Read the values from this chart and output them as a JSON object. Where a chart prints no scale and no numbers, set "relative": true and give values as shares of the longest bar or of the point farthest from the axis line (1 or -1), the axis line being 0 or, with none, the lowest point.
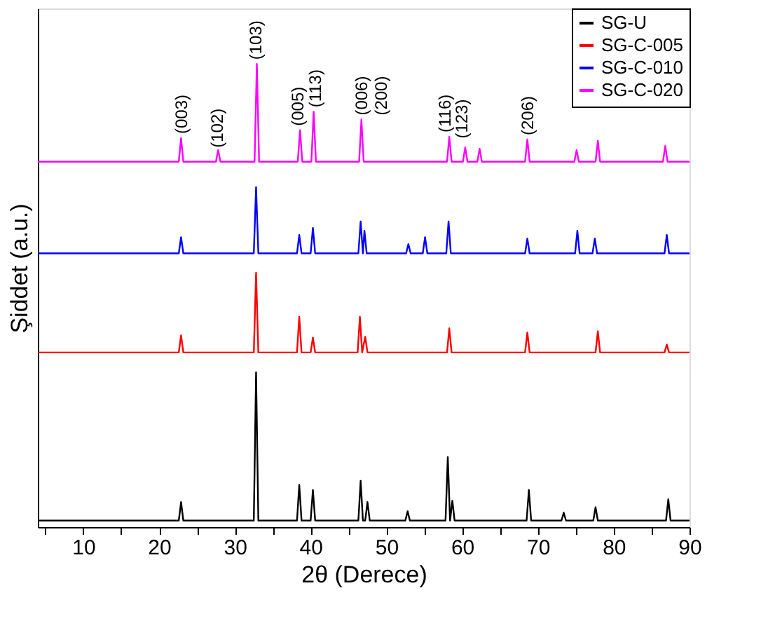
{
  "chart_data": {
    "type": "line",
    "relative": true,
    "xlabel": "2θ (Derece)",
    "ylabel": "Şiddet (a.u.)",
    "xlim": [
      4,
      90
    ],
    "xticks": [
      {
        "value": 5,
        "label": null
      },
      10,
      {
        "value": 15,
        "label": null
      },
      20,
      {
        "value": 25,
        "label": null
      },
      30,
      {
        "value": 35,
        "label": null
      },
      40,
      {
        "value": 45,
        "label": null
      },
      50,
      {
        "value": 55,
        "label": null
      },
      60,
      {
        "value": 65,
        "label": null
      },
      70,
      {
        "value": 75,
        "label": null
      },
      80,
      {
        "value": 85,
        "label": null
      },
      90
    ],
    "legend": "top right",
    "grid": false,
    "marker": "none",
    "line_style": "solid",
    "series": [
      {
        "name": "SG-U",
        "color": "#000000",
        "x": [
          4,
          22.6,
          22.9,
          23.2,
          32.5,
          32.8,
          33.1,
          38.2,
          38.5,
          38.8,
          40.0,
          40.3,
          40.6,
          46.3,
          46.6,
          46.9,
          47.2,
          47.5,
          47.8,
          52.5,
          52.8,
          53.1,
          57.8,
          58.1,
          58.4,
          58.7,
          59.0,
          68.5,
          68.8,
          69.1,
          73.1,
          73.4,
          73.7,
          77.3,
          77.6,
          77.9,
          86.9,
          87.2,
          87.5,
          90
        ],
        "values": [
          0.014,
          0.014,
          0.054,
          0.014,
          0.014,
          0.334,
          0.014,
          0.014,
          0.091,
          0.014,
          0.014,
          0.08,
          0.014,
          0.014,
          0.1,
          0.014,
          0.014,
          0.054,
          0.014,
          0.014,
          0.034,
          0.014,
          0.014,
          0.151,
          0.014,
          0.057,
          0.014,
          0.014,
          0.08,
          0.014,
          0.014,
          0.031,
          0.014,
          0.014,
          0.043,
          0.014,
          0.014,
          0.06,
          0.014,
          0.014
        ]
      },
      {
        "name": "SG-C-005",
        "color": "#ff0000",
        "x": [
          4,
          22.6,
          22.9,
          23.2,
          32.5,
          32.8,
          33.1,
          38.2,
          38.5,
          38.8,
          40.0,
          40.3,
          40.6,
          46.2,
          46.5,
          46.8,
          47.2,
          47.5,
          58.0,
          58.3,
          58.6,
          68.3,
          68.6,
          68.9,
          77.6,
          77.9,
          78.2,
          86.7,
          87.0,
          87.3,
          90
        ],
        "values": [
          0.377,
          0.377,
          0.414,
          0.377,
          0.377,
          0.549,
          0.377,
          0.377,
          0.454,
          0.377,
          0.377,
          0.409,
          0.377,
          0.377,
          0.454,
          0.377,
          0.411,
          0.377,
          0.377,
          0.429,
          0.377,
          0.377,
          0.42,
          0.377,
          0.377,
          0.423,
          0.377,
          0.377,
          0.394,
          0.377,
          0.377
        ]
      },
      {
        "name": "SG-C-010",
        "color": "#0000ff",
        "x": [
          4,
          22.6,
          22.9,
          23.2,
          32.5,
          32.8,
          33.1,
          38.2,
          38.5,
          38.8,
          40.0,
          40.3,
          40.6,
          46.3,
          46.6,
          46.9,
          47.1,
          47.4,
          52.6,
          52.9,
          53.2,
          54.8,
          55.1,
          55.4,
          57.9,
          58.2,
          58.5,
          68.3,
          68.6,
          68.9,
          74.9,
          75.2,
          75.5,
          77.2,
          77.5,
          77.8,
          86.7,
          87.0,
          87.3,
          90
        ],
        "values": [
          0.591,
          0.591,
          0.626,
          0.591,
          0.591,
          0.734,
          0.591,
          0.591,
          0.631,
          0.591,
          0.591,
          0.646,
          0.591,
          0.591,
          0.66,
          0.591,
          0.64,
          0.591,
          0.591,
          0.611,
          0.591,
          0.591,
          0.626,
          0.591,
          0.591,
          0.66,
          0.591,
          0.591,
          0.623,
          0.591,
          0.591,
          0.64,
          0.591,
          0.591,
          0.623,
          0.591,
          0.591,
          0.631,
          0.591,
          0.591
        ]
      },
      {
        "name": "SG-C-020",
        "color": "#ff00ff",
        "x": [
          4,
          22.6,
          22.9,
          23.2,
          27.5,
          27.8,
          28.1,
          32.6,
          32.9,
          33.2,
          38.3,
          38.6,
          38.9,
          40.1,
          40.4,
          40.7,
          46.4,
          46.7,
          47.0,
          58.0,
          58.3,
          58.6,
          60.1,
          60.4,
          60.7,
          62.0,
          62.3,
          62.6,
          68.3,
          68.6,
          68.9,
          74.8,
          75.1,
          75.4,
          77.6,
          77.9,
          78.2,
          86.5,
          86.8,
          87.1,
          90
        ],
        "values": [
          0.789,
          0.789,
          0.84,
          0.789,
          0.789,
          0.814,
          0.789,
          0.789,
          1.0,
          0.789,
          0.789,
          0.857,
          0.789,
          0.789,
          0.897,
          0.789,
          0.789,
          0.88,
          0.789,
          0.789,
          0.843,
          0.789,
          0.789,
          0.82,
          0.789,
          0.789,
          0.817,
          0.789,
          0.789,
          0.837,
          0.789,
          0.789,
          0.814,
          0.789,
          0.789,
          0.834,
          0.789,
          0.789,
          0.823,
          0.789,
          0.789
        ]
      }
    ],
    "annotations": [
      {
        "text": "(003)",
        "x": 23.0,
        "y": 0.84
      },
      {
        "text": "(102)",
        "x": 27.7,
        "y": 0.81
      },
      {
        "text": "(103)",
        "x": 32.8,
        "y": 1.0
      },
      {
        "text": "(005)",
        "x": 38.3,
        "y": 0.857
      },
      {
        "text": "(113)",
        "x": 40.6,
        "y": 0.897
      },
      {
        "text": "(006)\n(200)",
        "x": 46.7,
        "y": 0.88
      },
      {
        "text": "(116)",
        "x": 57.7,
        "y": 0.843
      },
      {
        "text": "(123)",
        "x": 59.9,
        "y": 0.83
      },
      {
        "text": "(206)",
        "x": 68.6,
        "y": 0.837
      }
    ]
  }
}
